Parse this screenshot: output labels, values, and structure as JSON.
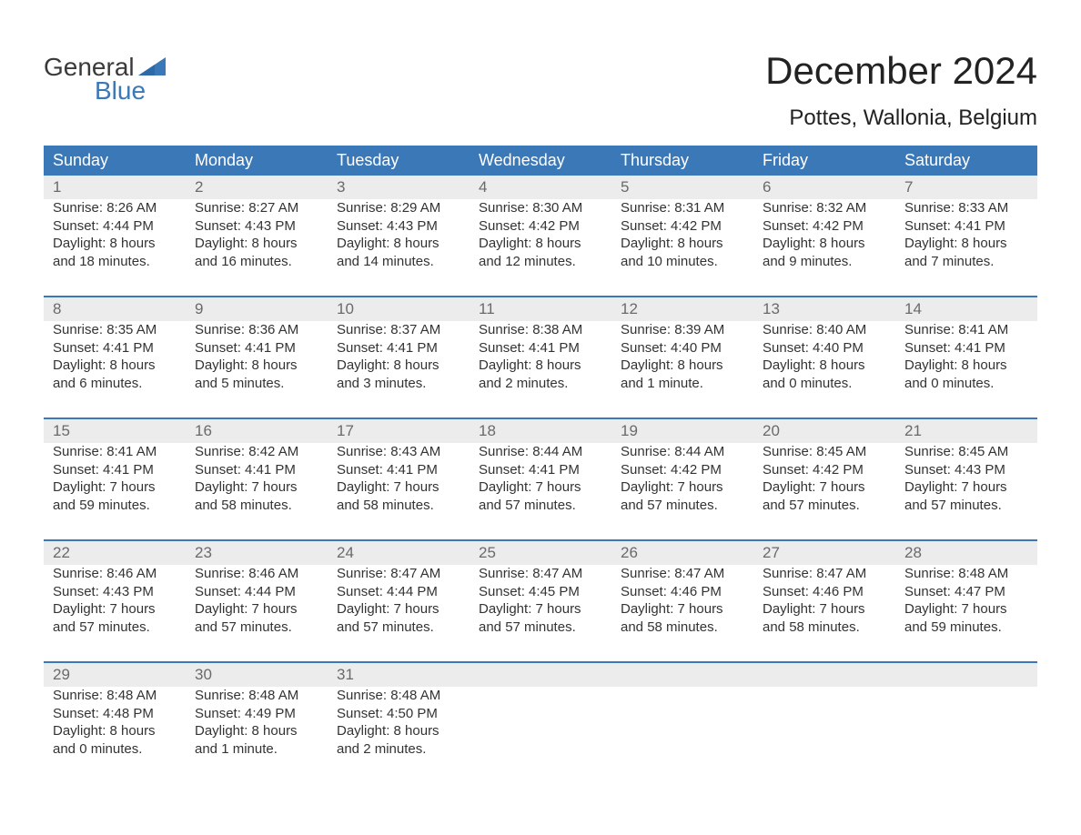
{
  "brand": {
    "word1": "General",
    "word2": "Blue",
    "text_color": "#3a3a3a",
    "accent_color": "#3b78b8"
  },
  "title": "December 2024",
  "location": "Pottes, Wallonia, Belgium",
  "header_bg": "#3b78b8",
  "header_text_color": "#ffffff",
  "daynum_bg": "#ececec",
  "daynum_text_color": "#6a6a6a",
  "daynum_border_color": "#3b78b8",
  "body_text_color": "#333333",
  "background_color": "#ffffff",
  "fonts": {
    "title_size_pt": 32,
    "location_size_pt": 18,
    "header_size_pt": 14,
    "body_size_pt": 11,
    "daynum_size_pt": 13
  },
  "columns": [
    "Sunday",
    "Monday",
    "Tuesday",
    "Wednesday",
    "Thursday",
    "Friday",
    "Saturday"
  ],
  "weeks": [
    [
      {
        "d": "1",
        "sr": "Sunrise: 8:26 AM",
        "ss": "Sunset: 4:44 PM",
        "dl1": "Daylight: 8 hours",
        "dl2": "and 18 minutes."
      },
      {
        "d": "2",
        "sr": "Sunrise: 8:27 AM",
        "ss": "Sunset: 4:43 PM",
        "dl1": "Daylight: 8 hours",
        "dl2": "and 16 minutes."
      },
      {
        "d": "3",
        "sr": "Sunrise: 8:29 AM",
        "ss": "Sunset: 4:43 PM",
        "dl1": "Daylight: 8 hours",
        "dl2": "and 14 minutes."
      },
      {
        "d": "4",
        "sr": "Sunrise: 8:30 AM",
        "ss": "Sunset: 4:42 PM",
        "dl1": "Daylight: 8 hours",
        "dl2": "and 12 minutes."
      },
      {
        "d": "5",
        "sr": "Sunrise: 8:31 AM",
        "ss": "Sunset: 4:42 PM",
        "dl1": "Daylight: 8 hours",
        "dl2": "and 10 minutes."
      },
      {
        "d": "6",
        "sr": "Sunrise: 8:32 AM",
        "ss": "Sunset: 4:42 PM",
        "dl1": "Daylight: 8 hours",
        "dl2": "and 9 minutes."
      },
      {
        "d": "7",
        "sr": "Sunrise: 8:33 AM",
        "ss": "Sunset: 4:41 PM",
        "dl1": "Daylight: 8 hours",
        "dl2": "and 7 minutes."
      }
    ],
    [
      {
        "d": "8",
        "sr": "Sunrise: 8:35 AM",
        "ss": "Sunset: 4:41 PM",
        "dl1": "Daylight: 8 hours",
        "dl2": "and 6 minutes."
      },
      {
        "d": "9",
        "sr": "Sunrise: 8:36 AM",
        "ss": "Sunset: 4:41 PM",
        "dl1": "Daylight: 8 hours",
        "dl2": "and 5 minutes."
      },
      {
        "d": "10",
        "sr": "Sunrise: 8:37 AM",
        "ss": "Sunset: 4:41 PM",
        "dl1": "Daylight: 8 hours",
        "dl2": "and 3 minutes."
      },
      {
        "d": "11",
        "sr": "Sunrise: 8:38 AM",
        "ss": "Sunset: 4:41 PM",
        "dl1": "Daylight: 8 hours",
        "dl2": "and 2 minutes."
      },
      {
        "d": "12",
        "sr": "Sunrise: 8:39 AM",
        "ss": "Sunset: 4:40 PM",
        "dl1": "Daylight: 8 hours",
        "dl2": "and 1 minute."
      },
      {
        "d": "13",
        "sr": "Sunrise: 8:40 AM",
        "ss": "Sunset: 4:40 PM",
        "dl1": "Daylight: 8 hours",
        "dl2": "and 0 minutes."
      },
      {
        "d": "14",
        "sr": "Sunrise: 8:41 AM",
        "ss": "Sunset: 4:41 PM",
        "dl1": "Daylight: 8 hours",
        "dl2": "and 0 minutes."
      }
    ],
    [
      {
        "d": "15",
        "sr": "Sunrise: 8:41 AM",
        "ss": "Sunset: 4:41 PM",
        "dl1": "Daylight: 7 hours",
        "dl2": "and 59 minutes."
      },
      {
        "d": "16",
        "sr": "Sunrise: 8:42 AM",
        "ss": "Sunset: 4:41 PM",
        "dl1": "Daylight: 7 hours",
        "dl2": "and 58 minutes."
      },
      {
        "d": "17",
        "sr": "Sunrise: 8:43 AM",
        "ss": "Sunset: 4:41 PM",
        "dl1": "Daylight: 7 hours",
        "dl2": "and 58 minutes."
      },
      {
        "d": "18",
        "sr": "Sunrise: 8:44 AM",
        "ss": "Sunset: 4:41 PM",
        "dl1": "Daylight: 7 hours",
        "dl2": "and 57 minutes."
      },
      {
        "d": "19",
        "sr": "Sunrise: 8:44 AM",
        "ss": "Sunset: 4:42 PM",
        "dl1": "Daylight: 7 hours",
        "dl2": "and 57 minutes."
      },
      {
        "d": "20",
        "sr": "Sunrise: 8:45 AM",
        "ss": "Sunset: 4:42 PM",
        "dl1": "Daylight: 7 hours",
        "dl2": "and 57 minutes."
      },
      {
        "d": "21",
        "sr": "Sunrise: 8:45 AM",
        "ss": "Sunset: 4:43 PM",
        "dl1": "Daylight: 7 hours",
        "dl2": "and 57 minutes."
      }
    ],
    [
      {
        "d": "22",
        "sr": "Sunrise: 8:46 AM",
        "ss": "Sunset: 4:43 PM",
        "dl1": "Daylight: 7 hours",
        "dl2": "and 57 minutes."
      },
      {
        "d": "23",
        "sr": "Sunrise: 8:46 AM",
        "ss": "Sunset: 4:44 PM",
        "dl1": "Daylight: 7 hours",
        "dl2": "and 57 minutes."
      },
      {
        "d": "24",
        "sr": "Sunrise: 8:47 AM",
        "ss": "Sunset: 4:44 PM",
        "dl1": "Daylight: 7 hours",
        "dl2": "and 57 minutes."
      },
      {
        "d": "25",
        "sr": "Sunrise: 8:47 AM",
        "ss": "Sunset: 4:45 PM",
        "dl1": "Daylight: 7 hours",
        "dl2": "and 57 minutes."
      },
      {
        "d": "26",
        "sr": "Sunrise: 8:47 AM",
        "ss": "Sunset: 4:46 PM",
        "dl1": "Daylight: 7 hours",
        "dl2": "and 58 minutes."
      },
      {
        "d": "27",
        "sr": "Sunrise: 8:47 AM",
        "ss": "Sunset: 4:46 PM",
        "dl1": "Daylight: 7 hours",
        "dl2": "and 58 minutes."
      },
      {
        "d": "28",
        "sr": "Sunrise: 8:48 AM",
        "ss": "Sunset: 4:47 PM",
        "dl1": "Daylight: 7 hours",
        "dl2": "and 59 minutes."
      }
    ],
    [
      {
        "d": "29",
        "sr": "Sunrise: 8:48 AM",
        "ss": "Sunset: 4:48 PM",
        "dl1": "Daylight: 8 hours",
        "dl2": "and 0 minutes."
      },
      {
        "d": "30",
        "sr": "Sunrise: 8:48 AM",
        "ss": "Sunset: 4:49 PM",
        "dl1": "Daylight: 8 hours",
        "dl2": "and 1 minute."
      },
      {
        "d": "31",
        "sr": "Sunrise: 8:48 AM",
        "ss": "Sunset: 4:50 PM",
        "dl1": "Daylight: 8 hours",
        "dl2": "and 2 minutes."
      },
      null,
      null,
      null,
      null
    ]
  ]
}
